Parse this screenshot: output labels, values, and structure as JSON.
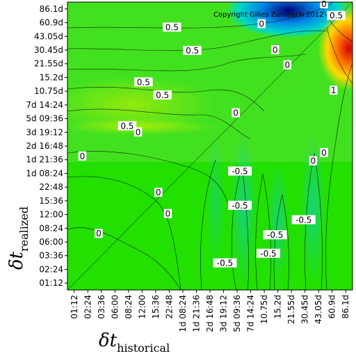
{
  "chart_data": {
    "type": "heatmap",
    "title": "",
    "xlabel": {
      "symbol": "δt",
      "subscript": "historical"
    },
    "ylabel": {
      "symbol": "δt",
      "subscript": "realized"
    },
    "x_tick_labels": [
      "01:12",
      "02:24",
      "03:36",
      "06:00",
      "08:24",
      "12:00",
      "15:36",
      "22:48",
      "1d 08:24",
      "1d 21:36",
      "2d 16:48",
      "3d 19:12",
      "5d 09:36",
      "7d 14:24",
      "10.75d",
      "15.2d",
      "21.55d",
      "30.45d",
      "43.05d",
      "60.9d",
      "86.1d"
    ],
    "y_tick_labels": [
      "01:12",
      "02:24",
      "03:36",
      "06:00",
      "08:24",
      "12:00",
      "15:36",
      "22:48",
      "1d 08:24",
      "1d 21:36",
      "2d 16:48",
      "3d 19:12",
      "5d 09:36",
      "7d 14:24",
      "10.75d",
      "15.2d",
      "21.55d",
      "30.45d",
      "43.05d",
      "60.9d",
      "86.1d"
    ],
    "contour_labels": [
      {
        "text": "0",
        "x": 18.9,
        "y": 20.85
      },
      {
        "text": "0",
        "x": 14.3,
        "y": 19.4
      },
      {
        "text": "0.5",
        "x": 19.8,
        "y": 20.0
      },
      {
        "text": "0.5",
        "x": 7.7,
        "y": 19.15
      },
      {
        "text": "0.5",
        "x": 9.2,
        "y": 17.45
      },
      {
        "text": "0.5",
        "x": 5.6,
        "y": 15.15
      },
      {
        "text": "0.5",
        "x": 7.0,
        "y": 14.2
      },
      {
        "text": "0.5",
        "x": 4.4,
        "y": 11.95
      },
      {
        "text": "0",
        "x": 15.3,
        "y": 17.5
      },
      {
        "text": "0",
        "x": 16.2,
        "y": 16.4
      },
      {
        "text": "0",
        "x": 12.4,
        "y": 12.9
      },
      {
        "text": "0",
        "x": 5.2,
        "y": 11.5
      },
      {
        "text": "0",
        "x": 1.1,
        "y": 9.75
      },
      {
        "text": "0",
        "x": 18.1,
        "y": 9.4
      },
      {
        "text": "0",
        "x": 18.9,
        "y": 10.0
      },
      {
        "text": "0",
        "x": 6.7,
        "y": 7.1
      },
      {
        "text": "0",
        "x": 7.4,
        "y": 5.55
      },
      {
        "text": "0",
        "x": 2.3,
        "y": 4.1
      },
      {
        "text": "-0.5",
        "x": 12.7,
        "y": 8.65
      },
      {
        "text": "-0.5",
        "x": 12.7,
        "y": 6.15
      },
      {
        "text": "-0.5",
        "x": 17.4,
        "y": 5.1
      },
      {
        "text": "-0.5",
        "x": 15.3,
        "y": 4.0
      },
      {
        "text": "-0.5",
        "x": 14.8,
        "y": 2.65
      },
      {
        "text": "-0.5",
        "x": 11.6,
        "y": 1.95
      },
      {
        "text": "1",
        "x": 19.6,
        "y": 14.55
      }
    ],
    "copyright": "Copyright Gilles Zumbach 2012"
  }
}
